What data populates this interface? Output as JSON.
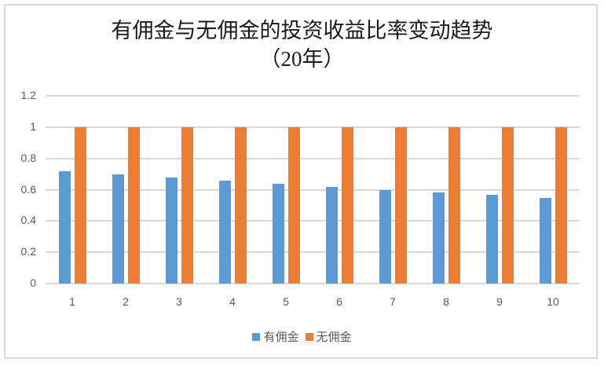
{
  "chart_data": {
    "type": "bar",
    "title": "有佣金与无佣金的投资收益比率变动趋势（20年）",
    "title_lines": [
      "有佣金与无佣金的投资收益比率变动趋势",
      "（20年）"
    ],
    "xlabel": "",
    "ylabel": "",
    "categories": [
      "1",
      "2",
      "3",
      "4",
      "5",
      "6",
      "7",
      "8",
      "9",
      "10"
    ],
    "series": [
      {
        "name": "有佣金",
        "color": "#5b9bd5",
        "values": [
          0.717,
          0.697,
          0.677,
          0.657,
          0.637,
          0.617,
          0.6,
          0.58,
          0.565,
          0.546
        ]
      },
      {
        "name": "无佣金",
        "color": "#ed7d31",
        "values": [
          1,
          1,
          1,
          1,
          1,
          1,
          1,
          1,
          1,
          1
        ]
      }
    ],
    "ylim": [
      0,
      1.2
    ],
    "yticks": [
      "0",
      "0.2",
      "0.4",
      "0.6",
      "0.8",
      "1",
      "1.2"
    ],
    "grid": true,
    "legend_position": "bottom"
  }
}
